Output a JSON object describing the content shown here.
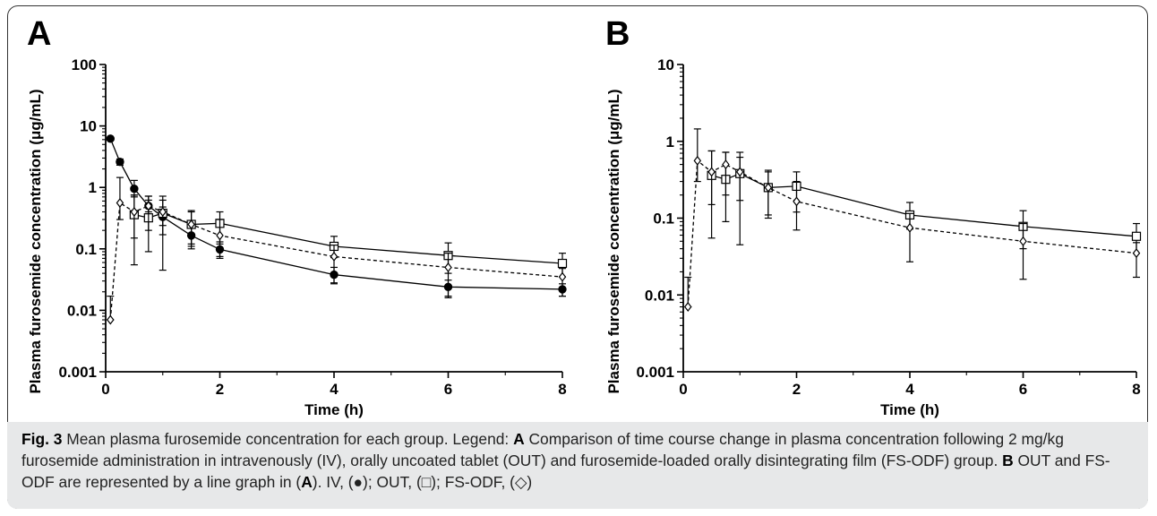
{
  "panels": [
    {
      "letter": "A"
    },
    {
      "letter": "B"
    }
  ],
  "chart_data": [
    {
      "type": "line",
      "panel": "A",
      "xlabel": "Time (h)",
      "ylabel": "Plasma furosemide concentration (μg/mL)",
      "xlim": [
        0,
        8
      ],
      "ylim": [
        0.001,
        100
      ],
      "yscale": "log",
      "x_ticks": [
        "0",
        "2",
        "4",
        "6",
        "8"
      ],
      "y_ticks": [
        "0.001",
        "0.01",
        "0.1",
        "1",
        "10",
        "100"
      ],
      "series": [
        {
          "marker": "filled-circle",
          "line": "solid",
          "x": [
            0.083,
            0.25,
            0.5,
            0.75,
            1,
            1.5,
            2,
            4,
            6,
            8
          ],
          "y": [
            6.2,
            2.6,
            0.95,
            0.5,
            0.33,
            0.165,
            0.098,
            0.038,
            0.024,
            0.022
          ],
          "err_up": [
            6.4,
            2.9,
            1.3,
            0.62,
            0.48,
            0.22,
            0.13,
            0.05,
            0.031,
            0.027
          ],
          "err_down": [
            6.0,
            2.3,
            0.7,
            0.4,
            0.24,
            0.12,
            0.075,
            0.028,
            0.017,
            0.017
          ]
        },
        {
          "marker": "open-square",
          "line": "solid",
          "x": [
            0.5,
            0.75,
            1,
            1.5,
            2,
            4,
            6,
            8
          ],
          "y": [
            0.36,
            0.32,
            0.38,
            0.25,
            0.26,
            0.11,
            0.078,
            0.058
          ],
          "err_up": [
            0.75,
            0.72,
            0.72,
            0.42,
            0.4,
            0.16,
            0.125,
            0.085
          ],
          "err_down": [
            0.055,
            0.09,
            0.045,
            0.11,
            0.12,
            0.072,
            0.04,
            0.035
          ]
        },
        {
          "marker": "open-diamond",
          "line": "dashed",
          "x": [
            0.083,
            0.25,
            0.5,
            0.75,
            1,
            1.5,
            2,
            4,
            6,
            8
          ],
          "y": [
            0.007,
            0.56,
            0.4,
            0.5,
            0.4,
            0.25,
            0.165,
            0.075,
            0.05,
            0.035
          ],
          "err_up": [
            0.017,
            1.45,
            0.75,
            0.72,
            0.62,
            0.4,
            0.3,
            0.115,
            0.085,
            0.048
          ],
          "err_down": [
            0.007,
            0.3,
            0.15,
            0.2,
            0.17,
            0.1,
            0.07,
            0.027,
            0.016,
            0.017
          ]
        }
      ]
    },
    {
      "type": "line",
      "panel": "B",
      "xlabel": "Time (h)",
      "ylabel": "Plasma furosemide concentration (μg/mL)",
      "xlim": [
        0,
        8
      ],
      "ylim": [
        0.001,
        10
      ],
      "yscale": "log",
      "x_ticks": [
        "0",
        "2",
        "4",
        "6",
        "8"
      ],
      "y_ticks": [
        "0.001",
        "0.01",
        "0.1",
        "1",
        "10"
      ],
      "series": [
        {
          "marker": "open-square",
          "line": "solid",
          "x": [
            0.5,
            0.75,
            1,
            1.5,
            2,
            4,
            6,
            8
          ],
          "y": [
            0.36,
            0.32,
            0.38,
            0.25,
            0.26,
            0.11,
            0.078,
            0.058
          ],
          "err_up": [
            0.75,
            0.72,
            0.72,
            0.42,
            0.4,
            0.16,
            0.125,
            0.085
          ],
          "err_down": [
            0.055,
            0.09,
            0.045,
            0.11,
            0.12,
            0.072,
            0.04,
            0.035
          ]
        },
        {
          "marker": "open-diamond",
          "line": "dashed",
          "x": [
            0.083,
            0.25,
            0.5,
            0.75,
            1,
            1.5,
            2,
            4,
            6,
            8
          ],
          "y": [
            0.007,
            0.56,
            0.4,
            0.5,
            0.4,
            0.25,
            0.165,
            0.075,
            0.05,
            0.035
          ],
          "err_up": [
            0.017,
            1.45,
            0.75,
            0.72,
            0.62,
            0.4,
            0.3,
            0.115,
            0.085,
            0.048
          ],
          "err_down": [
            0.007,
            0.3,
            0.15,
            0.2,
            0.17,
            0.1,
            0.07,
            0.027,
            0.016,
            0.017
          ]
        }
      ]
    }
  ],
  "caption": {
    "label": "Fig. 3",
    "title": " Mean plasma furosemide concentration for each group. Legend: ",
    "a_label": "A",
    "a_text": " Comparison of time course change in plasma concentration following 2 mg/kg furosemide administration in intravenously (IV), orally uncoated tablet (OUT) and furosemide-loaded orally disintegrating film (FS-ODF) group. ",
    "b_label": "B",
    "b_text1": " OUT and FS-ODF are represented by a line graph in (",
    "b_ref": "A",
    "b_text2": "). IV, (●); OUT, (□); FS-ODF, (◇)"
  }
}
